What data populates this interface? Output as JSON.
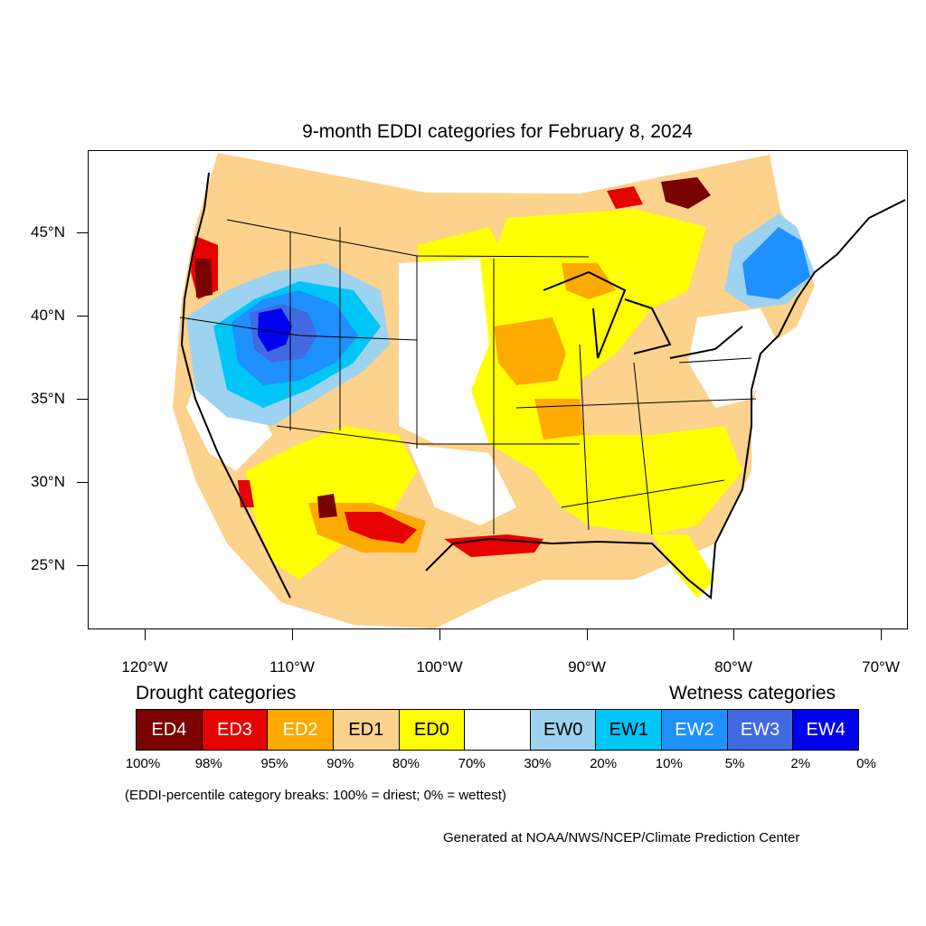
{
  "title": "9-month EDDI categories for February 8, 2024",
  "axes": {
    "latitudes": [
      {
        "label": "45°N",
        "value": 45
      },
      {
        "label": "40°N",
        "value": 40
      },
      {
        "label": "35°N",
        "value": 35
      },
      {
        "label": "30°N",
        "value": 30
      },
      {
        "label": "25°N",
        "value": 25
      }
    ],
    "longitudes": [
      {
        "label": "120°W",
        "value": -120
      },
      {
        "label": "110°W",
        "value": -110
      },
      {
        "label": "100°W",
        "value": -100
      },
      {
        "label": "90°W",
        "value": -90
      },
      {
        "label": "80°W",
        "value": -80
      },
      {
        "label": "70°W",
        "value": -70
      }
    ]
  },
  "legend": {
    "drought_heading": "Drought categories",
    "wetness_heading": "Wetness categories",
    "categories": [
      {
        "label": "ED4",
        "color": "#7a0000",
        "text_color": "#ffffff"
      },
      {
        "label": "ED3",
        "color": "#e60000",
        "text_color": "#ffffff"
      },
      {
        "label": "ED2",
        "color": "#ffaa00",
        "text_color": "#ffffff"
      },
      {
        "label": "ED1",
        "color": "#fcd28c",
        "text_color": "#000000"
      },
      {
        "label": "ED0",
        "color": "#ffff00",
        "text_color": "#000000"
      },
      {
        "label": "",
        "color": "#ffffff",
        "text_color": "#000000"
      },
      {
        "label": "EW0",
        "color": "#9dd3f0",
        "text_color": "#000000"
      },
      {
        "label": "EW1",
        "color": "#00c5f7",
        "text_color": "#000000"
      },
      {
        "label": "EW2",
        "color": "#1e90ff",
        "text_color": "#ffffff"
      },
      {
        "label": "EW3",
        "color": "#4169e1",
        "text_color": "#ffffff"
      },
      {
        "label": "EW4",
        "color": "#0000f0",
        "text_color": "#ffffff"
      }
    ],
    "percentiles": [
      "100%",
      "98%",
      "95%",
      "90%",
      "80%",
      "70%",
      "30%",
      "20%",
      "10%",
      "5%",
      "2%",
      "0%"
    ],
    "note": "(EDDI-percentile category breaks: 100% = driest; 0% = wettest)"
  },
  "credit": "Generated at NOAA/NWS/NCEP/Climate Prediction Center"
}
